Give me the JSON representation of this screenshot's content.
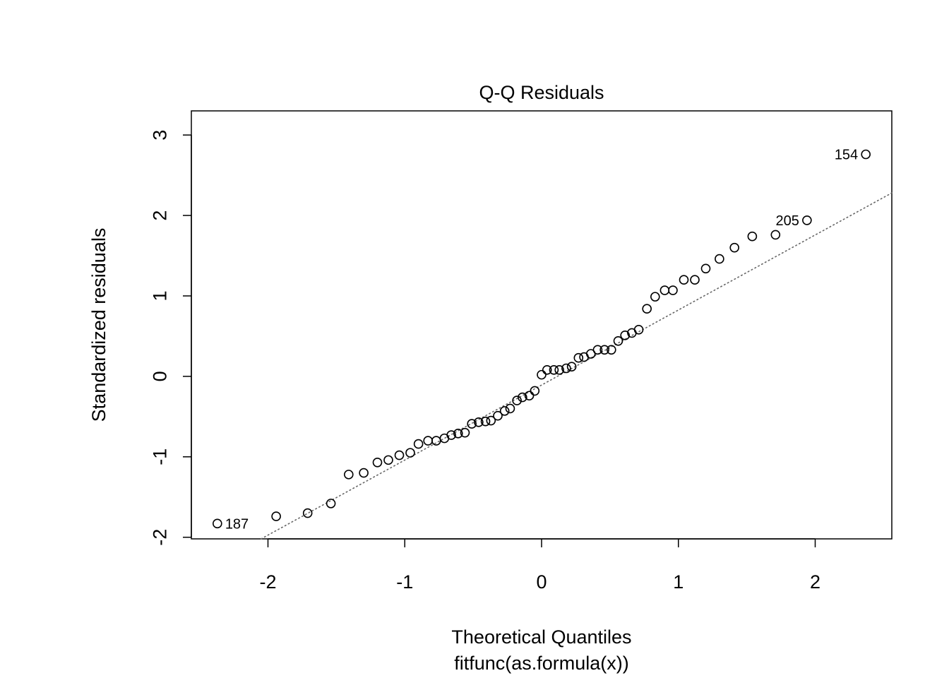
{
  "chart_data": {
    "type": "scatter",
    "title": "Q-Q Residuals",
    "xlabel": "Theoretical Quantiles",
    "xlabel_sub": "fitfunc(as.formula(x))",
    "ylabel": "Standardized residuals",
    "xlim": [
      -2.56,
      2.56
    ],
    "ylim": [
      -2.02,
      3.3
    ],
    "xticks": [
      -2,
      -1,
      0,
      1,
      2
    ],
    "xtick_labels": [
      "-2",
      "-1",
      "0",
      "1",
      "2"
    ],
    "yticks": [
      -2,
      -1,
      0,
      1,
      2,
      3
    ],
    "ytick_labels": [
      "-2",
      "-1",
      "0",
      "1",
      "2",
      "3"
    ],
    "grid": false,
    "reference_line": {
      "style": "dotted",
      "color": "#666666",
      "x1": -2.05,
      "y1": -2.02,
      "x2": 2.56,
      "y2": 2.28
    },
    "points": [
      {
        "x": -2.37,
        "y": -1.83,
        "label": "187"
      },
      {
        "x": -1.94,
        "y": -1.74
      },
      {
        "x": -1.71,
        "y": -1.7
      },
      {
        "x": -1.54,
        "y": -1.58
      },
      {
        "x": -1.41,
        "y": -1.22
      },
      {
        "x": -1.3,
        "y": -1.2
      },
      {
        "x": -1.2,
        "y": -1.07
      },
      {
        "x": -1.12,
        "y": -1.04
      },
      {
        "x": -1.04,
        "y": -0.98
      },
      {
        "x": -0.96,
        "y": -0.95
      },
      {
        "x": -0.9,
        "y": -0.84
      },
      {
        "x": -0.83,
        "y": -0.8
      },
      {
        "x": -0.77,
        "y": -0.8
      },
      {
        "x": -0.71,
        "y": -0.77
      },
      {
        "x": -0.66,
        "y": -0.73
      },
      {
        "x": -0.61,
        "y": -0.71
      },
      {
        "x": -0.56,
        "y": -0.7
      },
      {
        "x": -0.51,
        "y": -0.59
      },
      {
        "x": -0.46,
        "y": -0.57
      },
      {
        "x": -0.41,
        "y": -0.56
      },
      {
        "x": -0.37,
        "y": -0.55
      },
      {
        "x": -0.32,
        "y": -0.49
      },
      {
        "x": -0.27,
        "y": -0.43
      },
      {
        "x": -0.23,
        "y": -0.4
      },
      {
        "x": -0.18,
        "y": -0.3
      },
      {
        "x": -0.14,
        "y": -0.26
      },
      {
        "x": -0.09,
        "y": -0.24
      },
      {
        "x": -0.05,
        "y": -0.18
      },
      {
        "x": 0.0,
        "y": 0.02
      },
      {
        "x": 0.04,
        "y": 0.08
      },
      {
        "x": 0.09,
        "y": 0.08
      },
      {
        "x": 0.13,
        "y": 0.08
      },
      {
        "x": 0.18,
        "y": 0.1
      },
      {
        "x": 0.22,
        "y": 0.12
      },
      {
        "x": 0.27,
        "y": 0.23
      },
      {
        "x": 0.31,
        "y": 0.24
      },
      {
        "x": 0.36,
        "y": 0.28
      },
      {
        "x": 0.41,
        "y": 0.33
      },
      {
        "x": 0.46,
        "y": 0.33
      },
      {
        "x": 0.51,
        "y": 0.33
      },
      {
        "x": 0.56,
        "y": 0.44
      },
      {
        "x": 0.61,
        "y": 0.51
      },
      {
        "x": 0.66,
        "y": 0.54
      },
      {
        "x": 0.71,
        "y": 0.58
      },
      {
        "x": 0.77,
        "y": 0.84
      },
      {
        "x": 0.83,
        "y": 0.99
      },
      {
        "x": 0.9,
        "y": 1.07
      },
      {
        "x": 0.96,
        "y": 1.07
      },
      {
        "x": 1.04,
        "y": 1.2
      },
      {
        "x": 1.12,
        "y": 1.2
      },
      {
        "x": 1.2,
        "y": 1.34
      },
      {
        "x": 1.3,
        "y": 1.46
      },
      {
        "x": 1.41,
        "y": 1.6
      },
      {
        "x": 1.54,
        "y": 1.74
      },
      {
        "x": 1.71,
        "y": 1.76
      },
      {
        "x": 1.94,
        "y": 1.94,
        "label": "205"
      },
      {
        "x": 2.37,
        "y": 2.76,
        "label": "154"
      }
    ]
  }
}
